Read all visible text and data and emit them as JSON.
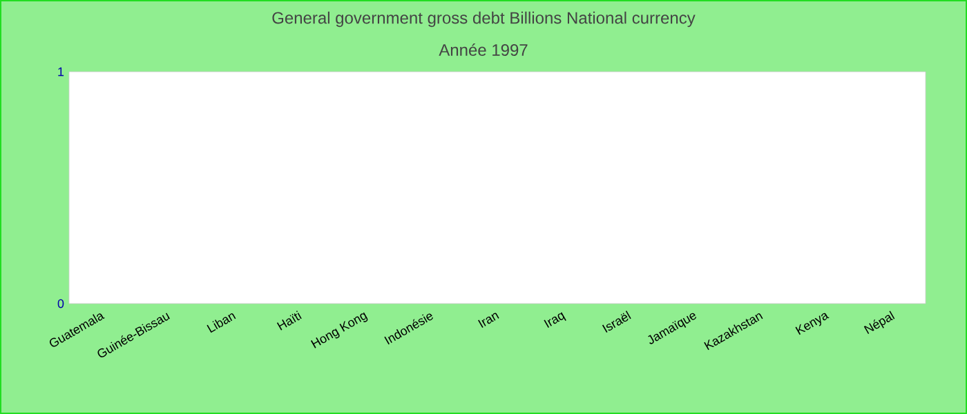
{
  "chart_data": {
    "type": "bar",
    "title": "General government gross debt Billions National currency",
    "subtitle": "Année 1997",
    "categories": [
      "Guatemala",
      "Guinée-Bissau",
      "Liban",
      "Haïti",
      "Hong Kong",
      "Indonésie",
      "Iran",
      "Iraq",
      "Israël",
      "Jamaïque",
      "Kazakhstan",
      "Kenya",
      "Népal"
    ],
    "values": [
      null,
      null,
      null,
      null,
      null,
      null,
      null,
      null,
      null,
      null,
      null,
      null,
      null
    ],
    "ylim": [
      0,
      1
    ],
    "yticks": [
      0,
      1
    ],
    "grid": false
  }
}
